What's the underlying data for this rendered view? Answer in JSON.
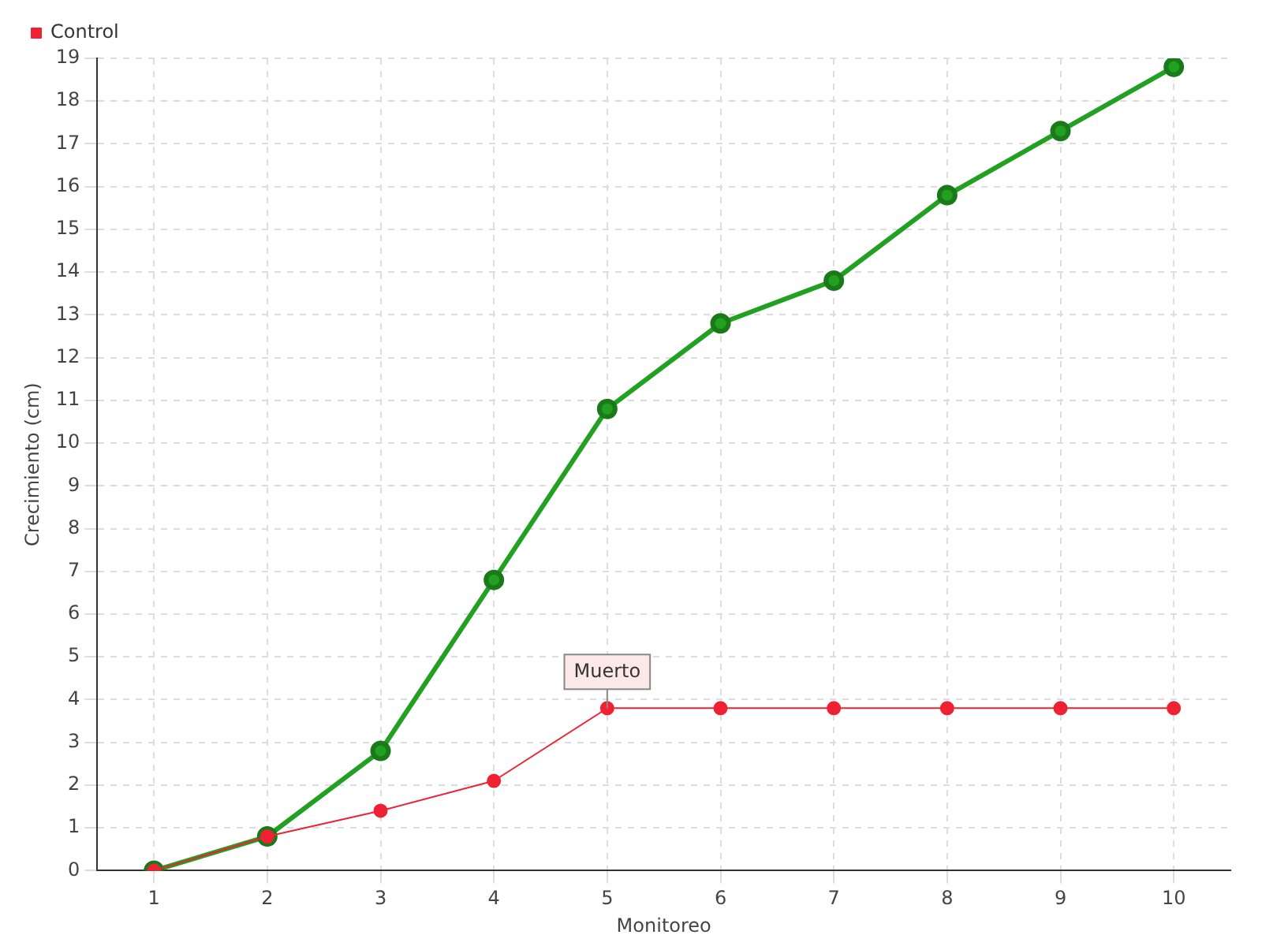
{
  "chart_data": {
    "type": "line",
    "xlabel": "Monitoreo",
    "ylabel": "Crecimiento (cm)",
    "categories": [
      "1",
      "2",
      "3",
      "4",
      "5",
      "6",
      "7",
      "8",
      "9",
      "10"
    ],
    "series": [
      {
        "color": "#22a022",
        "values": [
          0,
          0.8,
          2.8,
          6.8,
          10.8,
          12.8,
          13.8,
          15.8,
          17.3,
          18.8
        ]
      },
      {
        "name": "Control",
        "color": "#ee2233",
        "values": [
          0,
          0.8,
          1.4,
          2.1,
          3.8,
          3.8,
          3.8,
          3.8,
          3.8,
          3.8
        ]
      }
    ],
    "ylim": [
      0,
      19
    ],
    "yticks": [
      0,
      1,
      2,
      3,
      4,
      5,
      6,
      7,
      8,
      9,
      10,
      11,
      12,
      13,
      14,
      15,
      16,
      17,
      18,
      19
    ],
    "grid": true,
    "legend": "top left",
    "marker": "circle",
    "line_style": "solid",
    "annotations": [
      {
        "text": "Muerto",
        "x": "5",
        "y": 3.8
      }
    ]
  }
}
